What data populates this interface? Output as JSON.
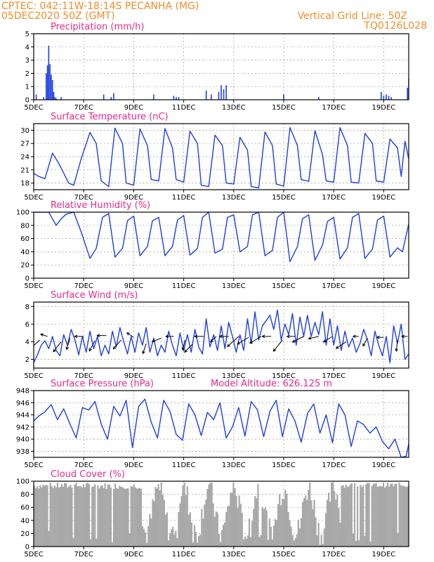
{
  "header": {
    "line1_left": "CPTEC:   042:11W-18:14S   PECANHA (MG)",
    "line2_left": "05DEC2020 50Z (GMT)",
    "line2_right": "Vertical Grid Line: 50Z",
    "line3_right": "TQ0126L028"
  },
  "colors": {
    "header": "#f08c28",
    "title": "#e8288c",
    "series": "#1f3fe0",
    "cloud": "#a8a8a8",
    "arrow": "#000000"
  },
  "time_axis": {
    "start_day": 5,
    "end_day": 20,
    "ticks": [
      {
        "day": 5,
        "label": "5DEC"
      },
      {
        "day": 7,
        "label": "7DEC"
      },
      {
        "day": 9,
        "label": "9DEC"
      },
      {
        "day": 11,
        "label": "11DEC"
      },
      {
        "day": 13,
        "label": "13DEC"
      },
      {
        "day": 15,
        "label": "15DEC"
      },
      {
        "day": 17,
        "label": "17DEC"
      },
      {
        "day": 19,
        "label": "19DEC"
      }
    ]
  },
  "chart_data": [
    {
      "type": "bar",
      "title": "Precipitation (mm/h)",
      "ylim": [
        0,
        5
      ],
      "yticks": [
        0,
        1,
        2,
        3,
        4,
        5
      ],
      "x": [
        5.0,
        5.1,
        5.4,
        5.5,
        5.55,
        5.6,
        5.65,
        5.7,
        5.75,
        5.8,
        5.85,
        5.9,
        6.1,
        7.8,
        8.1,
        8.2,
        9.8,
        10.6,
        10.7,
        10.8,
        11.9,
        12.1,
        12.4,
        12.5,
        12.6,
        12.7,
        15.0,
        16.4,
        18.9,
        19.0,
        19.1,
        19.2,
        19.3,
        19.95,
        20.0
      ],
      "values": [
        0.9,
        0.4,
        0.2,
        2.0,
        2.6,
        4.1,
        2.7,
        1.9,
        1.5,
        0.6,
        0.2,
        0.1,
        0.2,
        0.4,
        0.2,
        0.5,
        0.4,
        0.3,
        0.2,
        0.2,
        0.7,
        0.4,
        0.6,
        1.1,
        0.8,
        1.1,
        0.4,
        0.2,
        0.6,
        0.3,
        0.4,
        0.3,
        0.2,
        0.9,
        1.6
      ]
    },
    {
      "type": "line",
      "title": "Surface Temperature (nC)",
      "ylim": [
        16.5,
        31.5
      ],
      "yticks": [
        18,
        21,
        24,
        27,
        30
      ],
      "series": [
        {
          "x": [
            5.0,
            5.2,
            5.45,
            5.75,
            6.0,
            6.4,
            6.6,
            6.9,
            7.25,
            7.5,
            7.7,
            8.0,
            8.25,
            8.55,
            8.7,
            9.0,
            9.25,
            9.55,
            9.7,
            10.0,
            10.25,
            10.55,
            10.7,
            11.0,
            11.25,
            11.55,
            11.7,
            12.0,
            12.25,
            12.55,
            12.7,
            13.0,
            13.25,
            13.55,
            13.7,
            14.0,
            14.25,
            14.55,
            14.7,
            15.0,
            15.25,
            15.55,
            15.7,
            16.0,
            16.25,
            16.55,
            16.7,
            17.0,
            17.25,
            17.55,
            17.7,
            18.0,
            18.25,
            18.55,
            18.7,
            19.0,
            19.25,
            19.55,
            19.7,
            19.85,
            20.0
          ],
          "values": [
            20.2,
            19.5,
            19.0,
            24.8,
            22.5,
            18.0,
            17.5,
            23.5,
            29.5,
            27.0,
            18.5,
            17.2,
            30.5,
            27.0,
            18.0,
            17.5,
            30.3,
            26.5,
            18.8,
            18.5,
            30.4,
            26.0,
            18.8,
            18.2,
            29.8,
            27.0,
            17.5,
            17.2,
            28.9,
            26.5,
            18.0,
            17.8,
            28.4,
            25.5,
            17.2,
            16.9,
            29.6,
            26.5,
            17.8,
            17.3,
            30.6,
            26.5,
            18.8,
            18.4,
            29.9,
            24.5,
            18.5,
            18.2,
            30.6,
            26.5,
            18.2,
            18.0,
            29.3,
            27.0,
            18.5,
            18.2,
            28.0,
            26.0,
            19.5,
            27.5,
            23.5
          ]
        }
      ]
    },
    {
      "type": "line",
      "title": "Relative Humidity (%)",
      "ylim": [
        0,
        100
      ],
      "yticks": [
        0,
        20,
        40,
        60,
        80,
        100
      ],
      "series": [
        {
          "x": [
            5.0,
            5.3,
            5.6,
            5.9,
            6.1,
            6.3,
            6.6,
            6.9,
            7.25,
            7.5,
            7.75,
            8.0,
            8.25,
            8.55,
            8.75,
            9.0,
            9.25,
            9.55,
            9.75,
            10.0,
            10.25,
            10.55,
            10.75,
            11.0,
            11.25,
            11.55,
            11.75,
            12.0,
            12.25,
            12.55,
            12.75,
            13.0,
            13.25,
            13.55,
            13.75,
            14.0,
            14.25,
            14.55,
            14.75,
            15.0,
            15.25,
            15.55,
            15.75,
            16.0,
            16.25,
            16.55,
            16.75,
            17.0,
            17.25,
            17.55,
            17.75,
            18.0,
            18.25,
            18.55,
            18.75,
            19.0,
            19.25,
            19.55,
            19.75,
            20.0
          ],
          "values": [
            100,
            100,
            100,
            80,
            90,
            97,
            100,
            70,
            30,
            45,
            92,
            98,
            32,
            45,
            87,
            94,
            34,
            48,
            87,
            92,
            34,
            48,
            88,
            95,
            35,
            45,
            92,
            100,
            38,
            44,
            92,
            96,
            40,
            48,
            96,
            100,
            34,
            42,
            92,
            100,
            25,
            48,
            90,
            96,
            27,
            50,
            86,
            92,
            29,
            46,
            92,
            98,
            30,
            44,
            88,
            94,
            32,
            46,
            40,
            82
          ]
        }
      ]
    },
    {
      "type": "line",
      "title": "Surface Wind (m/s)",
      "ylim": [
        1,
        8.5
      ],
      "yticks": [
        2,
        4,
        6,
        8
      ],
      "series": [
        {
          "x": [
            5.0,
            5.15,
            5.3,
            5.45,
            5.6,
            5.75,
            5.9,
            6.05,
            6.2,
            6.35,
            6.5,
            6.65,
            6.8,
            6.95,
            7.1,
            7.25,
            7.4,
            7.55,
            7.7,
            7.85,
            8.0,
            8.15,
            8.3,
            8.45,
            8.6,
            8.75,
            8.9,
            9.05,
            9.2,
            9.35,
            9.5,
            9.65,
            9.8,
            9.95,
            10.1,
            10.25,
            10.4,
            10.55,
            10.7,
            10.85,
            11.0,
            11.15,
            11.3,
            11.45,
            11.6,
            11.75,
            11.9,
            12.05,
            12.2,
            12.35,
            12.5,
            12.65,
            12.8,
            12.95,
            13.1,
            13.25,
            13.4,
            13.55,
            13.7,
            13.85,
            14.0,
            14.15,
            14.3,
            14.45,
            14.6,
            14.75,
            14.9,
            15.05,
            15.2,
            15.35,
            15.5,
            15.65,
            15.8,
            15.95,
            16.1,
            16.25,
            16.4,
            16.55,
            16.7,
            16.85,
            17.0,
            17.15,
            17.3,
            17.45,
            17.6,
            17.75,
            17.9,
            18.05,
            18.2,
            18.35,
            18.5,
            18.65,
            18.8,
            18.95,
            19.1,
            19.25,
            19.4,
            19.55,
            19.7,
            19.85,
            20.0
          ],
          "values": [
            1.6,
            2.5,
            3.6,
            4.1,
            3.2,
            4.6,
            3.0,
            2.4,
            4.8,
            3.6,
            5.4,
            4.2,
            2.5,
            4.6,
            2.8,
            5.2,
            3.2,
            4.6,
            2.4,
            3.6,
            2.6,
            5.2,
            3.4,
            5.6,
            4.0,
            2.6,
            4.6,
            2.8,
            5.0,
            3.6,
            5.6,
            2.8,
            4.4,
            2.4,
            3.6,
            2.8,
            5.2,
            3.6,
            2.4,
            5.0,
            3.0,
            4.8,
            2.8,
            5.4,
            3.4,
            2.6,
            6.6,
            3.4,
            4.8,
            3.0,
            5.8,
            3.2,
            6.2,
            4.6,
            2.8,
            4.8,
            3.0,
            6.6,
            3.8,
            7.4,
            4.2,
            5.8,
            6.4,
            7.0,
            5.4,
            7.6,
            4.2,
            6.0,
            4.8,
            7.2,
            3.6,
            6.8,
            4.6,
            7.0,
            4.6,
            6.2,
            4.8,
            7.4,
            3.6,
            6.6,
            3.6,
            5.8,
            3.0,
            5.2,
            3.4,
            4.4,
            2.8,
            3.8,
            5.4,
            4.2,
            2.4,
            5.2,
            3.6,
            2.4,
            4.6,
            1.6,
            5.8,
            3.8,
            6.0,
            2.0,
            2.6
          ]
        }
      ],
      "vectors": [
        {
          "x": 5.25,
          "y": 4.2,
          "u": -0.9,
          "v": -0.8
        },
        {
          "x": 5.55,
          "y": 4.6,
          "u": -0.6,
          "v": 0.2
        },
        {
          "x": 6.1,
          "y": 4.0,
          "u": -0.7,
          "v": -0.9
        },
        {
          "x": 6.45,
          "y": 4.4,
          "u": -0.3,
          "v": -1.0
        },
        {
          "x": 7.0,
          "y": 4.6,
          "u": -0.8,
          "v": 0.0
        },
        {
          "x": 7.45,
          "y": 4.1,
          "u": -0.5,
          "v": -0.9
        },
        {
          "x": 7.9,
          "y": 4.7,
          "u": -0.8,
          "v": 0.0
        },
        {
          "x": 8.5,
          "y": 4.2,
          "u": -0.7,
          "v": -0.8
        },
        {
          "x": 9.0,
          "y": 4.5,
          "u": -0.6,
          "v": 0.4
        },
        {
          "x": 9.5,
          "y": 3.8,
          "u": -0.3,
          "v": -0.9
        },
        {
          "x": 10.1,
          "y": 4.4,
          "u": -0.8,
          "v": -0.3
        },
        {
          "x": 10.6,
          "y": 4.6,
          "u": -0.7,
          "v": 0.0
        },
        {
          "x": 11.05,
          "y": 4.2,
          "u": -0.2,
          "v": -0.9
        },
        {
          "x": 11.35,
          "y": 3.7,
          "u": -0.7,
          "v": -0.7
        },
        {
          "x": 11.8,
          "y": 4.6,
          "u": -0.8,
          "v": 0.0
        },
        {
          "x": 12.3,
          "y": 4.6,
          "u": -0.5,
          "v": -0.5
        },
        {
          "x": 12.8,
          "y": 4.6,
          "u": -0.8,
          "v": 0.0
        },
        {
          "x": 13.2,
          "y": 4.6,
          "u": -1.0,
          "v": -0.9
        },
        {
          "x": 13.6,
          "y": 4.5,
          "u": -1.0,
          "v": -0.6
        },
        {
          "x": 14.1,
          "y": 4.6,
          "u": -1.0,
          "v": -0.6
        },
        {
          "x": 14.5,
          "y": 4.6,
          "u": -0.8,
          "v": 0.0
        },
        {
          "x": 14.95,
          "y": 4.2,
          "u": -0.8,
          "v": -1.0
        },
        {
          "x": 15.45,
          "y": 4.6,
          "u": -0.7,
          "v": 0.0
        },
        {
          "x": 15.8,
          "y": 4.6,
          "u": -1.0,
          "v": -0.5
        },
        {
          "x": 16.4,
          "y": 4.6,
          "u": -0.9,
          "v": -0.2
        },
        {
          "x": 16.95,
          "y": 4.6,
          "u": -0.8,
          "v": -0.5
        },
        {
          "x": 17.5,
          "y": 4.0,
          "u": -0.9,
          "v": -0.6
        },
        {
          "x": 18.0,
          "y": 4.6,
          "u": -0.5,
          "v": 0.0
        },
        {
          "x": 18.35,
          "y": 4.4,
          "u": -0.4,
          "v": -0.7
        },
        {
          "x": 19.0,
          "y": 4.5,
          "u": -0.6,
          "v": 0.0
        },
        {
          "x": 19.55,
          "y": 4.2,
          "u": -0.1,
          "v": -1.0
        },
        {
          "x": 19.95,
          "y": 4.6,
          "u": -0.5,
          "v": 0.0
        }
      ]
    },
    {
      "type": "line",
      "title": "Surface Pressure (hPa)",
      "annotation": "Model Altitude: 626.125 m",
      "ylim": [
        937,
        948
      ],
      "yticks": [
        938,
        940,
        942,
        944,
        946,
        948
      ],
      "series": [
        {
          "x": [
            5.0,
            5.2,
            5.45,
            5.7,
            5.95,
            6.2,
            6.45,
            6.7,
            6.95,
            7.2,
            7.45,
            7.7,
            7.95,
            8.2,
            8.45,
            8.7,
            8.95,
            9.2,
            9.45,
            9.7,
            9.95,
            10.2,
            10.45,
            10.7,
            10.95,
            11.2,
            11.45,
            11.7,
            11.95,
            12.2,
            12.45,
            12.7,
            12.95,
            13.2,
            13.45,
            13.7,
            13.95,
            14.2,
            14.45,
            14.7,
            14.95,
            15.2,
            15.45,
            15.7,
            15.95,
            16.2,
            16.45,
            16.7,
            16.95,
            17.2,
            17.45,
            17.7,
            17.95,
            18.2,
            18.45,
            18.7,
            18.95,
            19.2,
            19.45,
            19.7,
            19.9,
            20.0
          ],
          "values": [
            943.0,
            943.8,
            944.5,
            945.7,
            943.2,
            945.0,
            942.5,
            940.2,
            945.2,
            944.8,
            946.2,
            942.5,
            940.0,
            945.4,
            943.8,
            946.4,
            938.6,
            945.4,
            946.6,
            942.8,
            940.2,
            946.4,
            944.6,
            940.8,
            939.8,
            945.8,
            944.0,
            940.6,
            944.4,
            943.2,
            946.0,
            940.2,
            942.0,
            945.2,
            940.5,
            946.2,
            944.8,
            940.4,
            944.6,
            946.4,
            940.4,
            945.0,
            943.0,
            939.5,
            944.2,
            945.8,
            941.0,
            944.0,
            939.4,
            945.8,
            944.0,
            938.8,
            943.0,
            942.4,
            941.0,
            942.0,
            939.6,
            938.4,
            940.0,
            937.0,
            937.2,
            939.2
          ]
        }
      ]
    },
    {
      "type": "bar",
      "title": "Cloud Cover (%)",
      "ylim": [
        0,
        100
      ],
      "yticks": [
        0,
        20,
        40,
        60,
        80,
        100
      ]
    }
  ]
}
